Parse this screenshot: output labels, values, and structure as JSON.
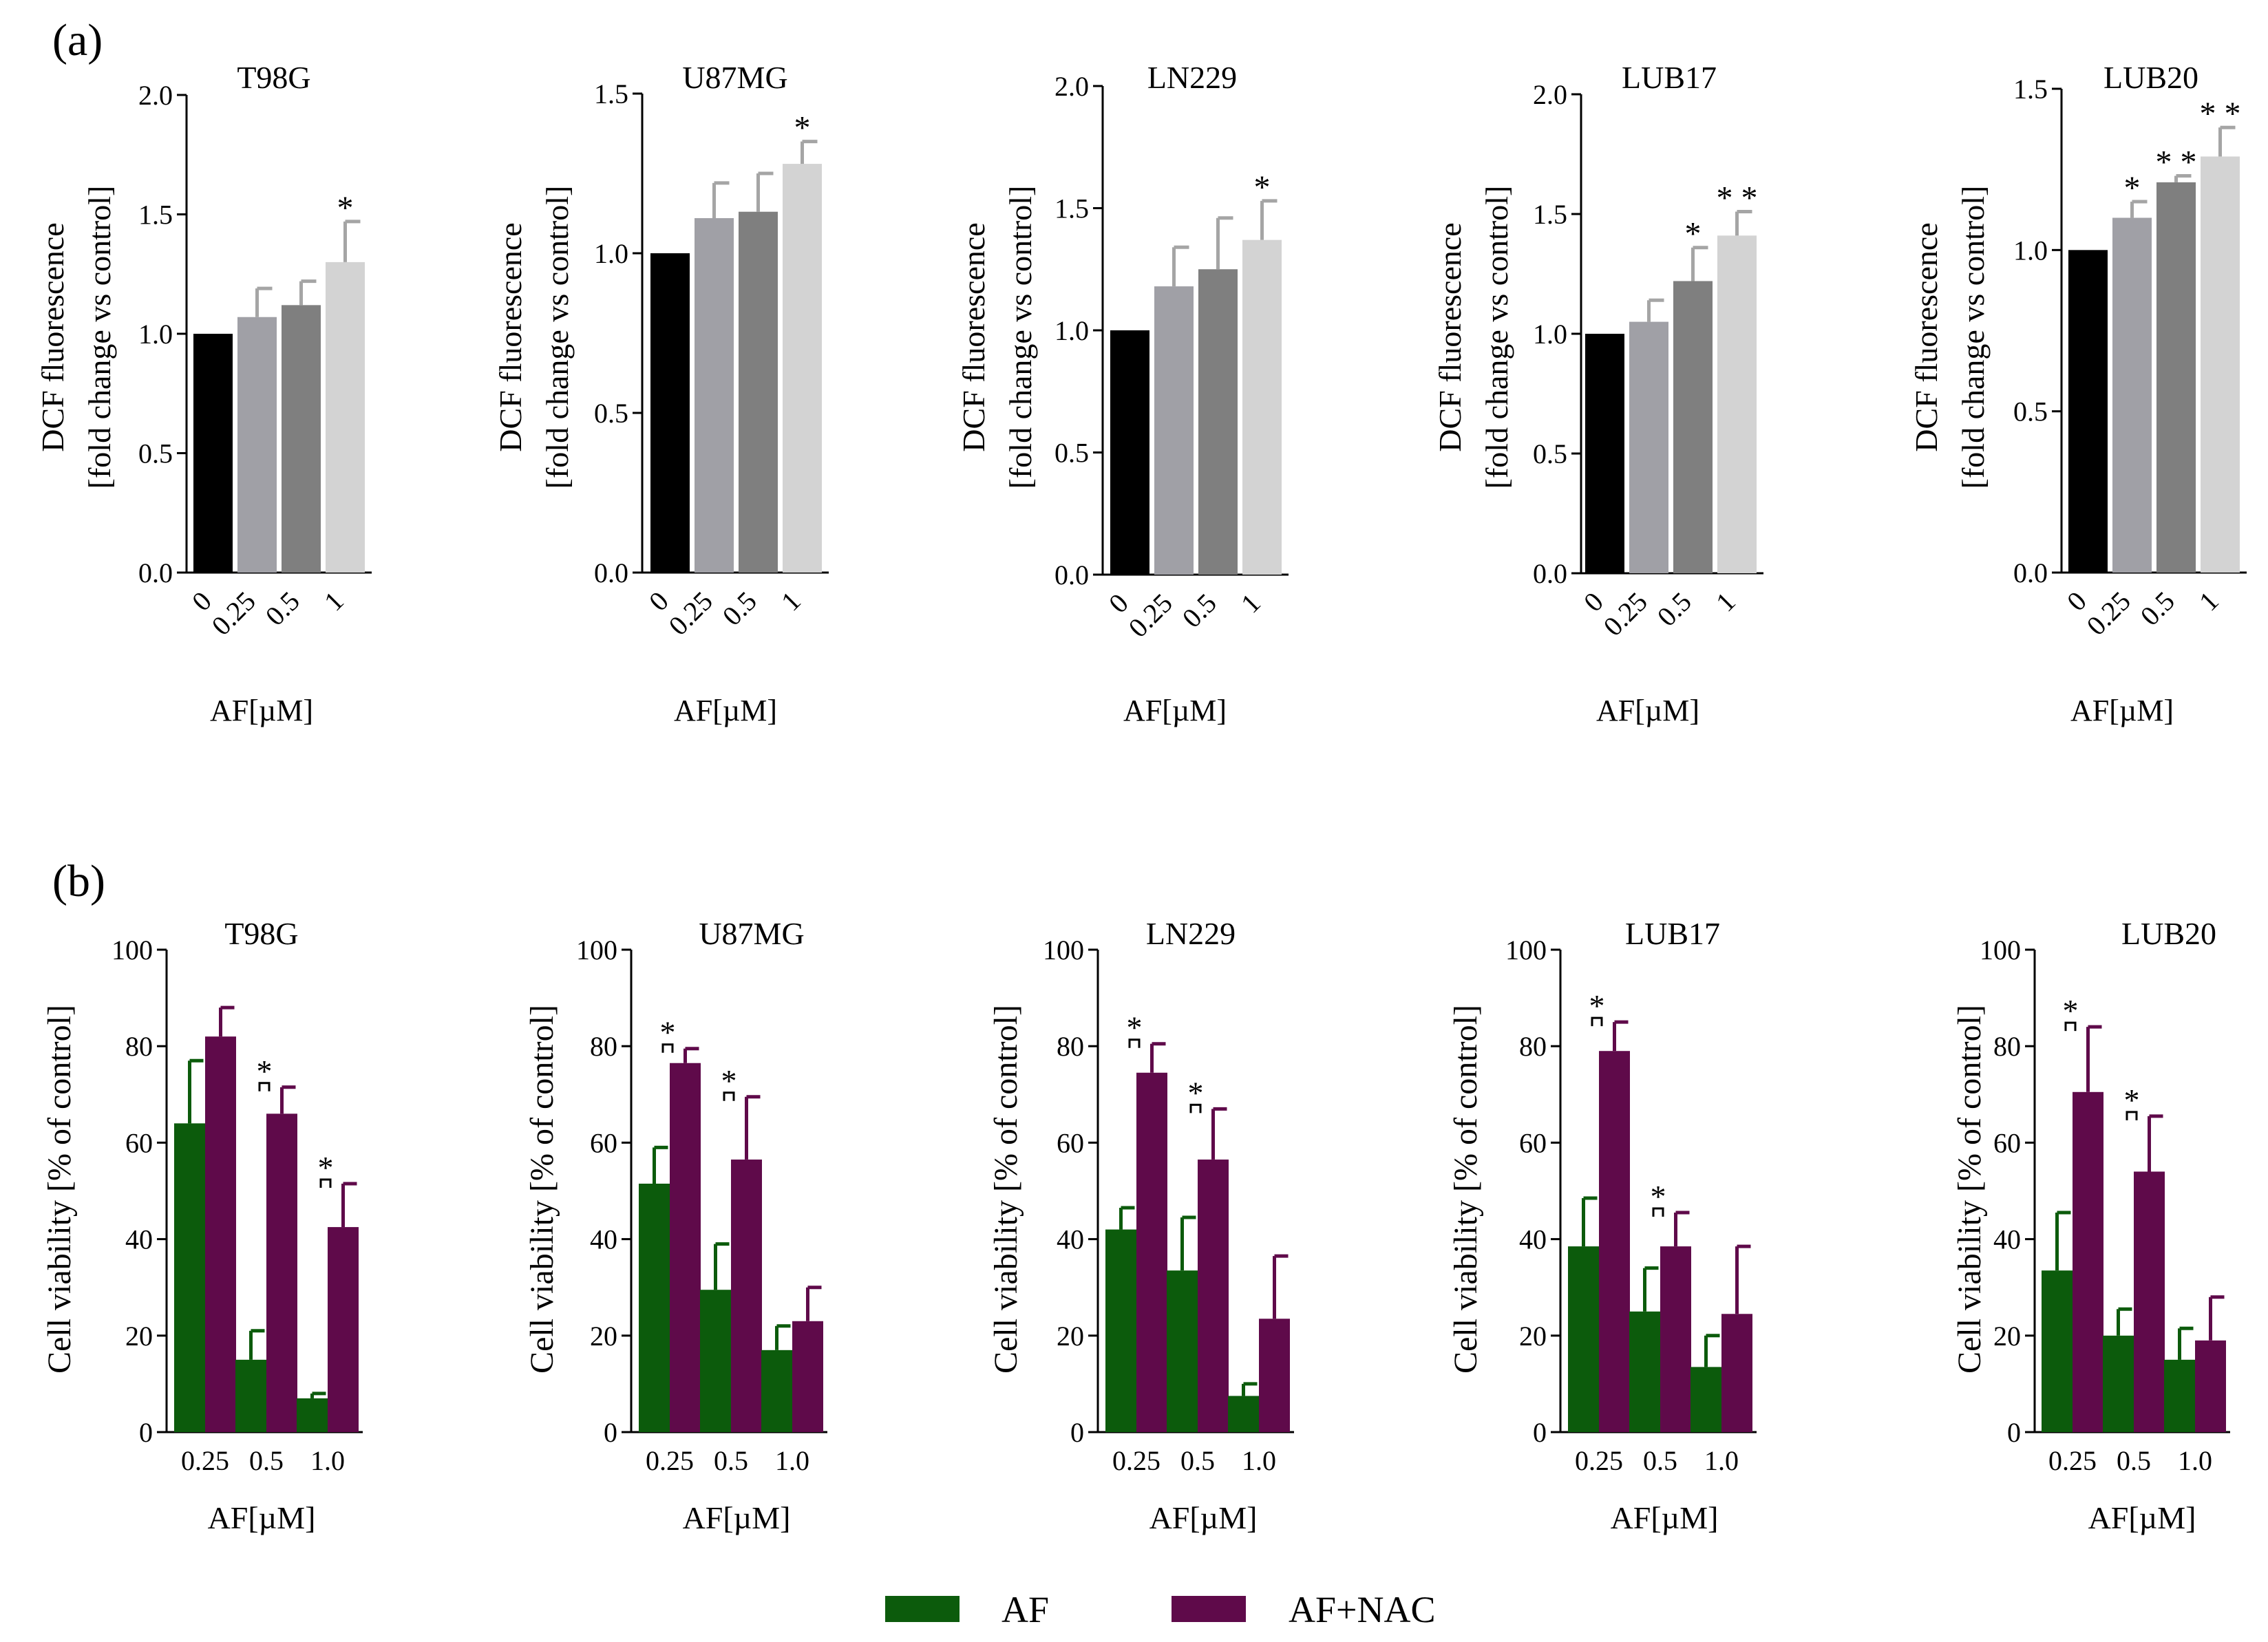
{
  "figure": {
    "panel_labels": [
      "(a)",
      "(b)"
    ],
    "legend": [
      {
        "name": "AF",
        "color": "#0c5b0c"
      },
      {
        "name": "AF+NAC",
        "color": "#5f0a4a"
      }
    ]
  },
  "chart_data": [
    {
      "panel": "a",
      "type": "bar",
      "title": "T98G",
      "ylabel": "DCF fluorescence\n[fold change vs control]",
      "xlabel": "AF[µM]",
      "categories": [
        "0",
        "0.25",
        "0.5",
        "1"
      ],
      "values": [
        1.0,
        1.07,
        1.12,
        1.3
      ],
      "errors": [
        0,
        0.12,
        0.1,
        0.17
      ],
      "significance": [
        "",
        "",
        "",
        "*"
      ],
      "ylim": [
        0,
        2.0
      ],
      "yticks": [
        "0.0",
        "0.5",
        "1.0",
        "1.5",
        "2.0"
      ],
      "colors": [
        "#000000",
        "#a0a0a6",
        "#7f7f7f",
        "#d3d3d3"
      ],
      "errorcolor": "#a5a5a5"
    },
    {
      "panel": "a",
      "type": "bar",
      "title": "U87MG",
      "ylabel": "DCF fluorescence\n[fold change vs control]",
      "xlabel": "AF[µM]",
      "categories": [
        "0",
        "0.25",
        "0.5",
        "1"
      ],
      "values": [
        1.0,
        1.11,
        1.13,
        1.28
      ],
      "errors": [
        0,
        0.11,
        0.12,
        0.07
      ],
      "significance": [
        "",
        "",
        "",
        "*"
      ],
      "ylim": [
        0,
        1.5
      ],
      "yticks": [
        "0.0",
        "0.5",
        "1.0",
        "1.5"
      ],
      "colors": [
        "#000000",
        "#a0a0a6",
        "#7f7f7f",
        "#d3d3d3"
      ],
      "errorcolor": "#a5a5a5"
    },
    {
      "panel": "a",
      "type": "bar",
      "title": "LN229",
      "ylabel": "DCF fluorescence\n[fold change vs control]",
      "xlabel": "AF[µM]",
      "categories": [
        "0",
        "0.25",
        "0.5",
        "1"
      ],
      "values": [
        1.0,
        1.18,
        1.25,
        1.37
      ],
      "errors": [
        0,
        0.16,
        0.21,
        0.16
      ],
      "significance": [
        "",
        "",
        "",
        "*"
      ],
      "ylim": [
        0,
        2.0
      ],
      "yticks": [
        "0.0",
        "0.5",
        "1.0",
        "1.5",
        "2.0"
      ],
      "colors": [
        "#000000",
        "#a0a0a6",
        "#7f7f7f",
        "#d3d3d3"
      ],
      "errorcolor": "#a5a5a5"
    },
    {
      "panel": "a",
      "type": "bar",
      "title": "LUB17",
      "ylabel": "DCF fluorescence\n[fold change vs control]",
      "xlabel": "AF[µM]",
      "categories": [
        "0",
        "0.25",
        "0.5",
        "1"
      ],
      "values": [
        1.0,
        1.05,
        1.22,
        1.41
      ],
      "errors": [
        0,
        0.09,
        0.14,
        0.1
      ],
      "significance": [
        "",
        "",
        "*",
        "**"
      ],
      "ylim": [
        0,
        2.0
      ],
      "yticks": [
        "0.0",
        "0.5",
        "1.0",
        "1.5",
        "2.0"
      ],
      "colors": [
        "#000000",
        "#a0a0a6",
        "#7f7f7f",
        "#d3d3d3"
      ],
      "errorcolor": "#a5a5a5"
    },
    {
      "panel": "a",
      "type": "bar",
      "title": "LUB20",
      "ylabel": "DCF fluorescence\n[fold change vs control]",
      "xlabel": "AF[µM]",
      "categories": [
        "0",
        "0.25",
        "0.5",
        "1"
      ],
      "values": [
        1.0,
        1.1,
        1.21,
        1.29
      ],
      "errors": [
        0,
        0.05,
        0.02,
        0.09
      ],
      "significance": [
        "",
        "*",
        "**",
        "**"
      ],
      "ylim": [
        0,
        1.5
      ],
      "yticks": [
        "0.0",
        "0.5",
        "1.0",
        "1.5"
      ],
      "colors": [
        "#000000",
        "#a0a0a6",
        "#7f7f7f",
        "#d3d3d3"
      ],
      "errorcolor": "#a5a5a5"
    },
    {
      "panel": "b",
      "type": "bar",
      "title": "T98G",
      "ylabel": "Cell viability [% of control]",
      "xlabel": "AF[µM]",
      "categories": [
        "0.25",
        "0.5",
        "1.0"
      ],
      "ylim": [
        0,
        100
      ],
      "yticks": [
        "0",
        "20",
        "40",
        "60",
        "80",
        "100"
      ],
      "series": [
        {
          "name": "AF",
          "values": [
            64,
            15,
            7
          ],
          "errors": [
            13,
            6,
            1
          ]
        },
        {
          "name": "AF+NAC",
          "values": [
            82,
            66,
            42.5
          ],
          "errors": [
            6,
            5.5,
            9
          ]
        }
      ],
      "significance": [
        "",
        "*",
        "*"
      ]
    },
    {
      "panel": "b",
      "type": "bar",
      "title": "U87MG",
      "ylabel": "Cell viability [% of control]",
      "xlabel": "AF[µM]",
      "categories": [
        "0.25",
        "0.5",
        "1.0"
      ],
      "ylim": [
        0,
        100
      ],
      "yticks": [
        "0",
        "20",
        "40",
        "60",
        "80",
        "100"
      ],
      "series": [
        {
          "name": "AF",
          "values": [
            51.5,
            29.5,
            17
          ],
          "errors": [
            7.5,
            9.5,
            5
          ]
        },
        {
          "name": "AF+NAC",
          "values": [
            76.5,
            56.5,
            23
          ],
          "errors": [
            3,
            13,
            7
          ]
        }
      ],
      "significance": [
        "*",
        "*",
        ""
      ]
    },
    {
      "panel": "b",
      "type": "bar",
      "title": "LN229",
      "ylabel": "Cell viability [% of control]",
      "xlabel": "AF[µM]",
      "categories": [
        "0.25",
        "0.5",
        "1.0"
      ],
      "ylim": [
        0,
        100
      ],
      "yticks": [
        "0",
        "20",
        "40",
        "60",
        "80",
        "100"
      ],
      "series": [
        {
          "name": "AF",
          "values": [
            42,
            33.5,
            7.5
          ],
          "errors": [
            4.5,
            11,
            2.5
          ]
        },
        {
          "name": "AF+NAC",
          "values": [
            74.5,
            56.5,
            23.5
          ],
          "errors": [
            6,
            10.5,
            13
          ]
        }
      ],
      "significance": [
        "*",
        "*",
        ""
      ]
    },
    {
      "panel": "b",
      "type": "bar",
      "title": "LUB17",
      "ylabel": "Cell viability [% of control]",
      "xlabel": "AF[µM]",
      "categories": [
        "0.25",
        "0.5",
        "1.0"
      ],
      "ylim": [
        0,
        100
      ],
      "yticks": [
        "0",
        "20",
        "40",
        "60",
        "80",
        "100"
      ],
      "series": [
        {
          "name": "AF",
          "values": [
            38.5,
            25,
            13.5
          ],
          "errors": [
            10,
            9,
            6.5
          ]
        },
        {
          "name": "AF+NAC",
          "values": [
            79,
            38.5,
            24.5
          ],
          "errors": [
            6,
            7,
            14
          ]
        }
      ],
      "significance": [
        "*",
        "*",
        ""
      ]
    },
    {
      "panel": "b",
      "type": "bar",
      "title": "LUB20",
      "ylabel": "Cell viability [% of control]",
      "xlabel": "AF[µM]",
      "categories": [
        "0.25",
        "0.5",
        "1.0"
      ],
      "ylim": [
        0,
        100
      ],
      "yticks": [
        "0",
        "20",
        "40",
        "60",
        "80",
        "100"
      ],
      "series": [
        {
          "name": "AF",
          "values": [
            33.5,
            20,
            15
          ],
          "errors": [
            12,
            5.5,
            6.5
          ]
        },
        {
          "name": "AF+NAC",
          "values": [
            70.5,
            54,
            19
          ],
          "errors": [
            13.5,
            11.5,
            9
          ]
        }
      ],
      "significance": [
        "*",
        "*",
        ""
      ]
    }
  ]
}
